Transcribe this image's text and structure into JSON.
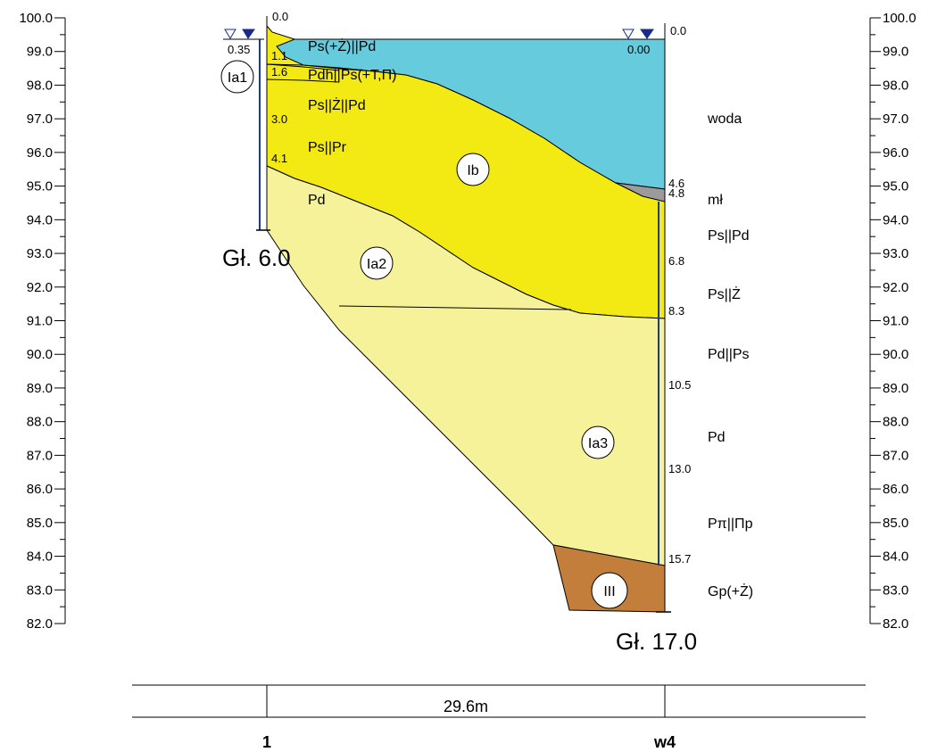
{
  "axis": {
    "min": 82.0,
    "max": 100.0,
    "step": 1.0,
    "minor_step": 0.5,
    "labels": [
      "100.0",
      "99.0",
      "98.0",
      "97.0",
      "96.0",
      "95.0",
      "94.0",
      "93.0",
      "92.0",
      "91.0",
      "90.0",
      "89.0",
      "88.0",
      "87.0",
      "86.0",
      "85.0",
      "84.0",
      "83.0",
      "82.0"
    ]
  },
  "colors": {
    "water": "#66CCDD",
    "yellow": "#F2EA12",
    "light_yellow": "#F6F29A",
    "brown": "#C27E3A",
    "silt": "#9B9B9B",
    "borehole_line": "#1A3A9A",
    "water_marker": "#1A2A8A"
  },
  "boreholes": [
    {
      "name": "1",
      "depth_label": "Gł. 6.0",
      "top_depth": "0.0",
      "water_level": "0.35",
      "depths": [
        "1.1",
        "1.6",
        "3.0",
        "4.1"
      ]
    },
    {
      "name": "w4",
      "depth_label": "Gł. 17.0",
      "top_depth": "0.0",
      "water_level": "0.00",
      "depths": [
        "4.6",
        "4.8",
        "6.8",
        "8.3",
        "10.5",
        "13.0",
        "15.7"
      ]
    }
  ],
  "left_layers": [
    "Ps(+Ż)||Pd",
    "Pdh||Ps(+T,Π)",
    "Ps||Ż||Pd",
    "Ps||Pr",
    "Pd"
  ],
  "right_layers": [
    "woda",
    "mł",
    "Ps||Pd",
    "Ps||Ż",
    "Pd||Ps",
    "Pd",
    "Pπ||Πp",
    "Gp(+Ż)"
  ],
  "units": [
    "Ia1",
    "Ib",
    "Ia2",
    "Ia3",
    "III"
  ],
  "distance": "29.6m"
}
